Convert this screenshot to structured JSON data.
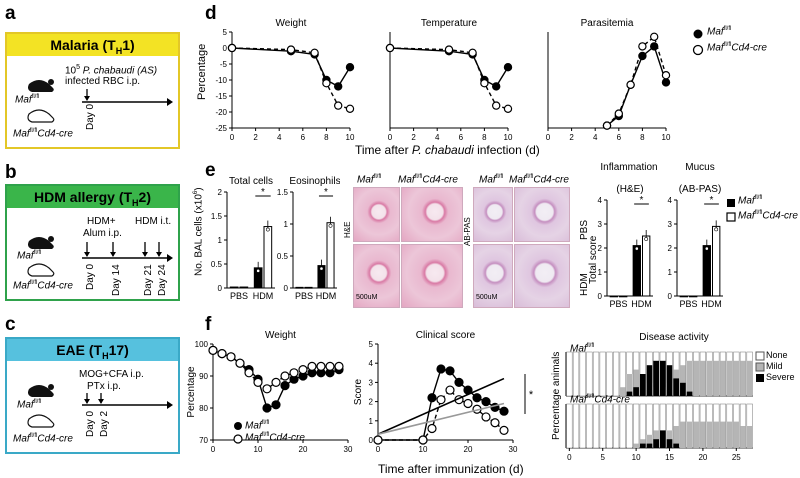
{
  "panels": {
    "a": {
      "label": "a",
      "banner": "Malaria (T",
      "banner_sub": "H",
      "banner_end": "1)",
      "treatment_line1": "10",
      "treatment_sup": "5",
      "treatment_species": " P. chabaudi (AS)",
      "treatment_line2": "infected RBC i.p.",
      "day": "Day 0",
      "mouse1": "Maf",
      "mouse1_sup": "fl/fl",
      "mouse2": "Maf",
      "mouse2_sup": "fl/fl",
      "mouse2_suffix": "Cd4-cre"
    },
    "b": {
      "label": "b",
      "banner": "HDM allergy (T",
      "banner_sub": "H",
      "banner_end": "2)",
      "t1": "HDM+",
      "t1b": "Alum i.p.",
      "t2": "HDM i.t.",
      "days": [
        "Day 0",
        "Day 14",
        "Day 21",
        "Day 24"
      ],
      "mouse1": "Maf",
      "mouse1_sup": "fl/fl",
      "mouse2": "Maf",
      "mouse2_sup": "fl/fl",
      "mouse2_suffix": "Cd4-cre"
    },
    "c": {
      "label": "c",
      "banner": "EAE (T",
      "banner_sub": "H",
      "banner_end": "17)",
      "t1": "MOG+CFA i.p.",
      "t2": "PTx i.p.",
      "days": [
        "Day 0",
        "Day 2"
      ],
      "mouse1": "Maf",
      "mouse1_sup": "fl/fl",
      "mouse2": "Maf",
      "mouse2_sup": "fl/fl",
      "mouse2_suffix": "Cd4-cre"
    },
    "d": {
      "label": "d",
      "ylabel": "Percentage",
      "xlabel_pre": "Time after ",
      "xlabel_it": "P. chabaudi",
      "xlabel_post": " infection (d)",
      "legend1": "Maf",
      "legend1_sup": "fl/fl",
      "legend2": "Maf",
      "legend2_sup": "fl/fl",
      "legend2_suffix": "Cd4-cre"
    },
    "e": {
      "label": "e",
      "ylabel": "No. BAL cells (x10",
      "ylabel_sup": "6",
      "ylabel_end": ")",
      "hist_labels": [
        "Maf",
        "fl/fl",
        "Maf",
        "fl/fl",
        "Cd4-cre",
        "Maf",
        "fl/fl",
        "Maf",
        "fl/fl",
        "Cd4-cre"
      ],
      "stain1": "H&E",
      "stain2": "AB-PAS",
      "row_pbs": "PBS",
      "row_hdm": "HDM",
      "scale1": "500uM",
      "scale2": "500uM",
      "score_ylabel": "Total score",
      "legend1": "Maf",
      "legend1_sup": "fl/fl",
      "legend2": "Maf",
      "legend2_sup": "fl/fl",
      "legend2_suffix": "Cd4-cre"
    },
    "f": {
      "label": "f",
      "xlabel": "Time after immunization (d)",
      "legend1": "Maf",
      "legend1_sup": "fl/fl",
      "legend2": "Maf",
      "legend2_sup": "fl/fl",
      "legend2_suffix": "Cd4-cre",
      "disease_ylabel": "Percentage animals",
      "disease_top": "Maf",
      "disease_top_sup": "fl/fl",
      "disease_bottom": "Maf",
      "disease_bottom_sup": "fl/fl",
      "disease_bottom_suffix": "Cd4-cre",
      "disease_legend": [
        "None",
        "Mild",
        "Severe"
      ]
    }
  },
  "chart_data": [
    {
      "id": "d-weight",
      "type": "line",
      "title": "Weight",
      "x": [
        0,
        5,
        7,
        8,
        9,
        10
      ],
      "series": [
        {
          "name": "Maf fl/fl",
          "values": [
            0,
            -1,
            -2,
            -10,
            -12,
            -6
          ]
        },
        {
          "name": "Maf fl/fl Cd4-cre",
          "values": [
            0,
            -0.5,
            -1.5,
            -11,
            -18,
            -19
          ]
        }
      ],
      "xlim": [
        0,
        10
      ],
      "ylim": [
        -25,
        5
      ],
      "yticks": [
        5,
        0,
        -5,
        -10,
        -15,
        -20,
        -25
      ],
      "xticks": [
        0,
        2,
        4,
        6,
        8,
        10
      ],
      "ylabel": "Percentage"
    },
    {
      "id": "d-temperature",
      "type": "line",
      "title": "Temperature",
      "x": [
        0,
        5,
        7,
        8,
        9,
        10
      ],
      "series": [
        {
          "name": "Maf fl/fl",
          "values": [
            0,
            -1,
            -2,
            -10,
            -12,
            -6
          ]
        },
        {
          "name": "Maf fl/fl Cd4-cre",
          "values": [
            0,
            -0.5,
            -1.5,
            -11,
            -18,
            -19
          ]
        }
      ],
      "xlim": [
        0,
        10
      ],
      "ylim": [
        -25,
        5
      ],
      "xticks": [
        0,
        2,
        4,
        6,
        8,
        10
      ]
    },
    {
      "id": "d-parasitemia",
      "type": "line",
      "title": "Parasitemia",
      "x": [
        5,
        6,
        7,
        8,
        9,
        10
      ],
      "series": [
        {
          "name": "Maf fl/fl",
          "values": [
            1,
            5,
            18,
            30,
            34,
            19
          ]
        },
        {
          "name": "Maf fl/fl Cd4-cre",
          "values": [
            1,
            6,
            18,
            34,
            38,
            22
          ]
        }
      ],
      "xlim": [
        0,
        10
      ],
      "ylim": [
        0,
        40
      ],
      "xticks": [
        0,
        2,
        4,
        6,
        8,
        10
      ]
    },
    {
      "id": "e-total",
      "type": "bar",
      "title": "Total cells",
      "categories": [
        "PBS",
        "HDM"
      ],
      "series": [
        {
          "name": "Maf fl/fl",
          "values": [
            0.02,
            0.42
          ]
        },
        {
          "name": "Maf fl/fl Cd4-cre",
          "values": [
            0.02,
            1.28
          ]
        }
      ],
      "ylim": [
        0,
        2.0
      ],
      "yticks": [
        0,
        0.5,
        1.0,
        1.5,
        2.0
      ],
      "significance": "*"
    },
    {
      "id": "e-eos",
      "type": "bar",
      "title": "Eosinophils",
      "categories": [
        "PBS",
        "HDM"
      ],
      "series": [
        {
          "name": "Maf fl/fl",
          "values": [
            0.01,
            0.35
          ]
        },
        {
          "name": "Maf fl/fl Cd4-cre",
          "values": [
            0.01,
            1.02
          ]
        }
      ],
      "ylim": [
        0,
        1.5
      ],
      "yticks": [
        0,
        0.5,
        1.0,
        1.5
      ],
      "significance": "*"
    },
    {
      "id": "e-inflammation",
      "type": "bar",
      "title": "Inflammation (H&E)",
      "categories": [
        "PBS",
        "HDM"
      ],
      "series": [
        {
          "name": "Maf fl/fl",
          "values": [
            0,
            2.1
          ]
        },
        {
          "name": "Maf fl/fl Cd4-cre",
          "values": [
            0,
            2.5
          ]
        }
      ],
      "ylim": [
        0,
        4
      ],
      "yticks": [
        0,
        1,
        2,
        3,
        4
      ],
      "significance": "*"
    },
    {
      "id": "e-mucus",
      "type": "bar",
      "title": "Mucus (AB-PAS)",
      "categories": [
        "PBS",
        "HDM"
      ],
      "series": [
        {
          "name": "Maf fl/fl",
          "values": [
            0,
            2.1
          ]
        },
        {
          "name": "Maf fl/fl Cd4-cre",
          "values": [
            0,
            2.9
          ]
        }
      ],
      "ylim": [
        0,
        4
      ],
      "yticks": [
        0,
        1,
        2,
        3,
        4
      ],
      "significance": "*"
    },
    {
      "id": "f-weight",
      "type": "line",
      "title": "Weight",
      "x": [
        0,
        2,
        4,
        6,
        8,
        10,
        12,
        14,
        16,
        18,
        20,
        22,
        24,
        26,
        28
      ],
      "series": [
        {
          "name": "Maf fl/fl",
          "values": [
            98,
            97,
            96,
            94,
            92,
            89,
            80,
            81,
            87,
            89,
            90,
            91,
            91,
            91,
            92
          ]
        },
        {
          "name": "Maf fl/fl Cd4-cre",
          "values": [
            98,
            97,
            96,
            94,
            91,
            88,
            86,
            88,
            90,
            91,
            92,
            93,
            93,
            93,
            93
          ]
        }
      ],
      "xlim": [
        0,
        30
      ],
      "ylim": [
        70,
        100
      ],
      "yticks": [
        70,
        80,
        90,
        100
      ],
      "xticks": [
        0,
        10,
        20,
        30
      ],
      "ylabel": "Percentage"
    },
    {
      "id": "f-clinical",
      "type": "line",
      "title": "Clinical score",
      "x": [
        0,
        10,
        12,
        14,
        16,
        18,
        20,
        22,
        24,
        26,
        28
      ],
      "series": [
        {
          "name": "Maf fl/fl",
          "values": [
            0,
            0,
            2.2,
            3.7,
            3.6,
            3.0,
            2.6,
            2.2,
            2.0,
            1.7,
            1.5
          ]
        },
        {
          "name": "Maf fl/fl Cd4-cre",
          "values": [
            0,
            0,
            0.6,
            2.1,
            2.6,
            2.1,
            1.9,
            1.6,
            1.2,
            0.9,
            0.5
          ]
        }
      ],
      "xlim": [
        0,
        30
      ],
      "ylim": [
        0,
        5
      ],
      "yticks": [
        0,
        1,
        2,
        3,
        4,
        5
      ],
      "xticks": [
        0,
        10,
        20,
        30
      ],
      "ylabel": "Score",
      "significance": "*"
    },
    {
      "id": "f-disease",
      "type": "bar",
      "title": "Disease activity",
      "categories": [
        "None",
        "Mild",
        "Severe"
      ],
      "xticks": [
        0,
        5,
        10,
        15,
        20,
        25
      ],
      "ylabel": "Percentage animals"
    }
  ]
}
